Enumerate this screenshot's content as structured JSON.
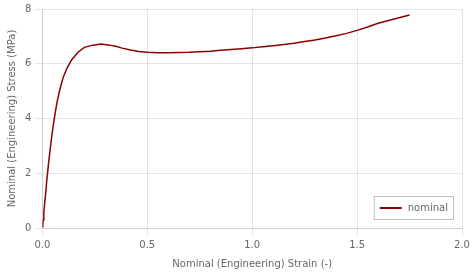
{
  "chart_data": {
    "type": "line",
    "xlabel": "Nominal (Engineering) Strain (-)",
    "ylabel": "Nominal (Engineering) Stress (MPa)",
    "x": [
      0.0,
      0.002,
      0.004,
      0.007,
      0.01,
      0.015,
      0.02,
      0.03,
      0.04,
      0.05,
      0.06,
      0.07,
      0.08,
      0.09,
      0.1,
      0.12,
      0.14,
      0.17,
      0.2,
      0.24,
      0.28,
      0.32,
      0.35,
      0.38,
      0.42,
      0.46,
      0.5,
      0.55,
      0.6,
      0.65,
      0.7,
      0.75,
      0.8,
      0.85,
      0.9,
      0.95,
      1.0,
      1.05,
      1.1,
      1.15,
      1.2,
      1.25,
      1.3,
      1.35,
      1.4,
      1.45,
      1.5,
      1.55,
      1.6,
      1.65,
      1.7,
      1.75
    ],
    "series": [
      {
        "name": "nominal",
        "color": "#8B0000",
        "values": [
          0.05,
          0.15,
          0.3,
          0.55,
          0.82,
          1.2,
          1.65,
          2.4,
          3.05,
          3.65,
          4.15,
          4.6,
          4.95,
          5.25,
          5.52,
          5.88,
          6.15,
          6.42,
          6.6,
          6.68,
          6.72,
          6.68,
          6.64,
          6.57,
          6.5,
          6.45,
          6.42,
          6.4,
          6.4,
          6.41,
          6.42,
          6.44,
          6.46,
          6.49,
          6.52,
          6.55,
          6.58,
          6.62,
          6.66,
          6.7,
          6.75,
          6.81,
          6.87,
          6.94,
          7.02,
          7.11,
          7.22,
          7.34,
          7.48,
          7.58,
          7.68,
          7.78
        ]
      }
    ],
    "xlim": [
      0,
      2
    ],
    "ylim": [
      0,
      8
    ],
    "xticks": [
      {
        "value": 0,
        "label": "0.0"
      },
      0.5,
      {
        "value": 1.0,
        "label": "1.0"
      },
      1.5,
      {
        "value": 2.0,
        "label": "2.0"
      }
    ],
    "yticks": [
      0,
      2,
      4,
      6,
      8
    ],
    "grid": true,
    "legend": "lower right"
  }
}
